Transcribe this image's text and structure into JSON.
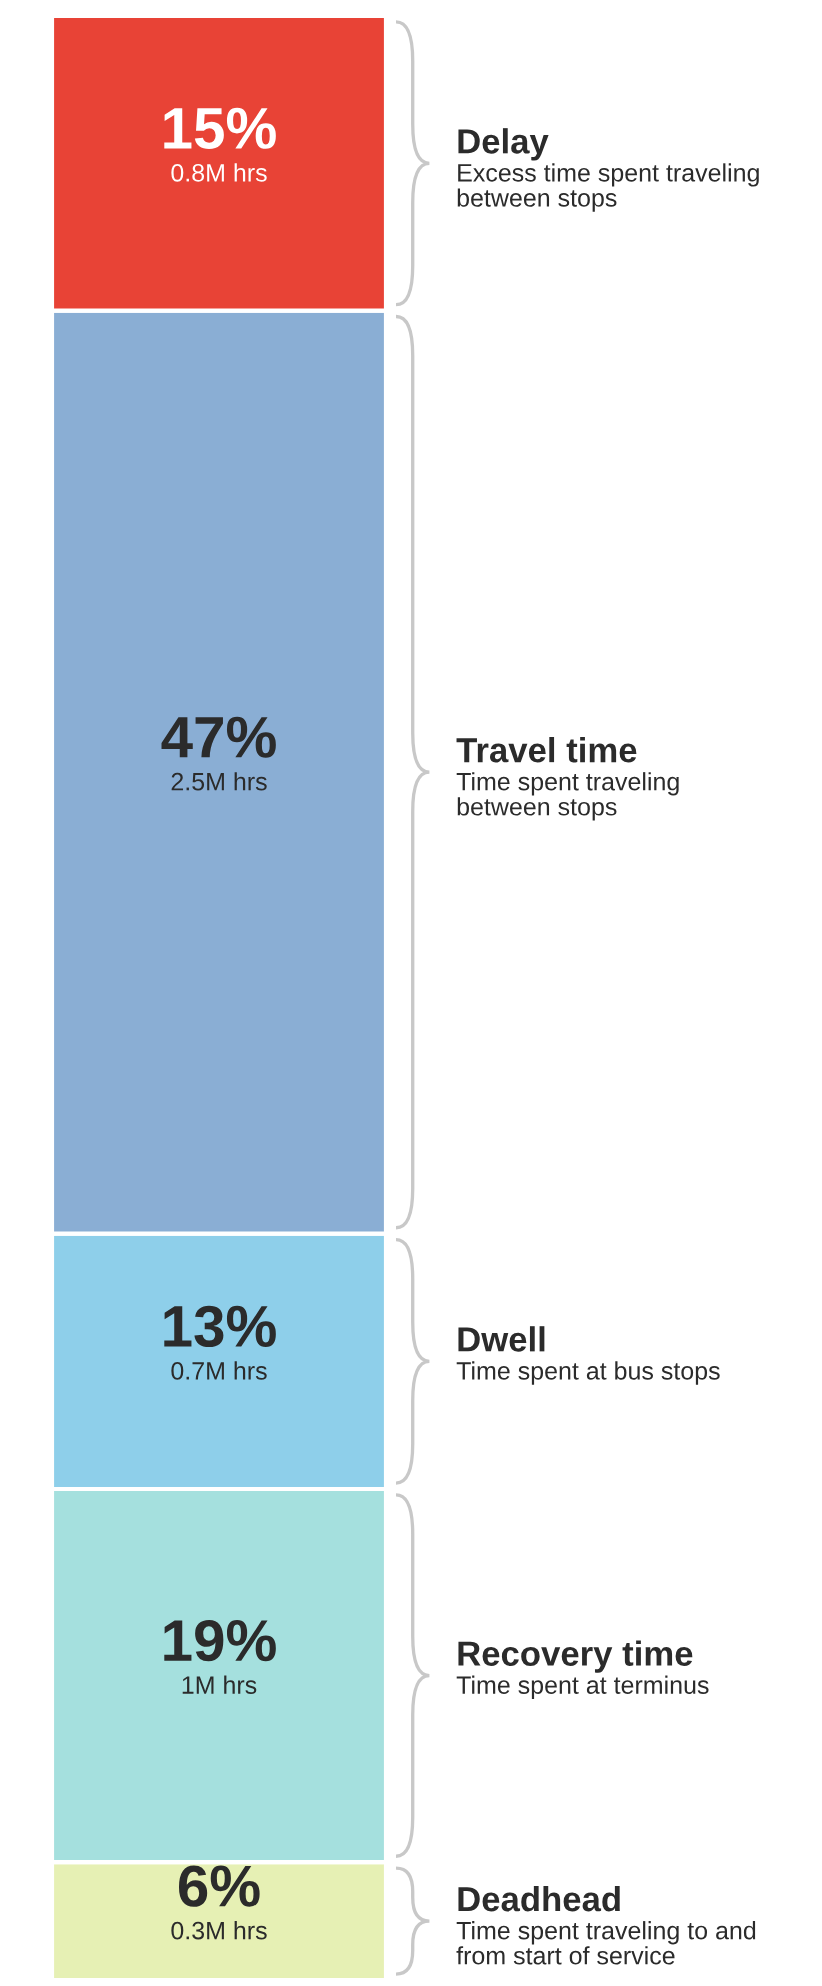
{
  "chart_data": {
    "type": "bar",
    "stacked": true,
    "categories": [
      null
    ],
    "ylim": [
      0,
      100
    ],
    "tick_labels": false,
    "series": [
      {
        "name": "Deadhead",
        "color": "#e6f0b4",
        "values": [
          6
        ],
        "value_labels": [
          "6%\n0.3M hrs"
        ]
      },
      {
        "name": "Recovery time",
        "color": "#a5e0de",
        "values": [
          19
        ],
        "value_labels": [
          "19%\n1M hrs"
        ]
      },
      {
        "name": "Dwell",
        "color": "#8ecfea",
        "values": [
          13
        ],
        "value_labels": [
          "13%\n0.7M hrs"
        ]
      },
      {
        "name": "Travel time",
        "color": "#8aaed4",
        "values": [
          47
        ],
        "value_labels": [
          "47%\n2.5M hrs"
        ]
      },
      {
        "name": "Delay",
        "color": "#e84336",
        "values": [
          15
        ],
        "value_labels": [
          "15%\n0.8M hrs"
        ]
      }
    ],
    "annotations": [
      "Time spent traveling to and\nfrom start of service",
      "Time spent at terminus",
      "Time spent at bus stops",
      "Time spent traveling\nbetween stops",
      "Excess time spent traveling\nbetween stops"
    ]
  }
}
